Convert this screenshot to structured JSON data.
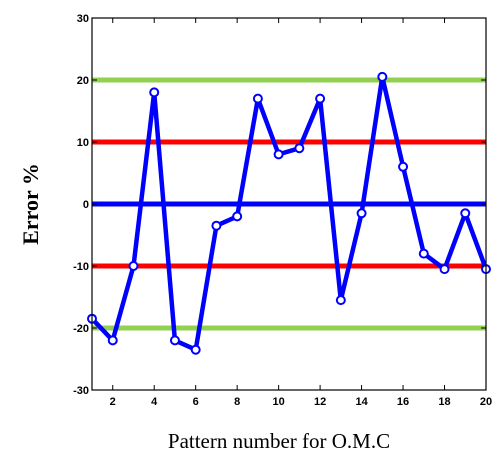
{
  "chart_data": {
    "type": "line",
    "title": "",
    "xlabel": "Pattern number for O.M.C",
    "ylabel": "Error %",
    "xlim": [
      1,
      20
    ],
    "ylim": [
      -30,
      30
    ],
    "xticks": [
      2,
      4,
      6,
      8,
      10,
      12,
      14,
      16,
      18,
      20
    ],
    "yticks": [
      -30,
      -20,
      -10,
      0,
      10,
      20,
      30
    ],
    "ytick_labels": [
      "-30",
      "-20",
      "-10",
      "0",
      "10",
      "20",
      "30"
    ],
    "grid": false,
    "reference_lines": [
      {
        "y": 20,
        "color": "#92d050"
      },
      {
        "y": 10,
        "color": "#ff0000"
      },
      {
        "y": 0,
        "color": "#0000ff"
      },
      {
        "y": -10,
        "color": "#ff0000"
      },
      {
        "y": -20,
        "color": "#92d050"
      }
    ],
    "series": [
      {
        "color": "#0000ff",
        "x": [
          1,
          2,
          3,
          4,
          5,
          6,
          7,
          8,
          9,
          10,
          11,
          12,
          13,
          14,
          15,
          16,
          17,
          18,
          19,
          20
        ],
        "values": [
          -18.5,
          -22,
          -10,
          18,
          -22,
          -23.5,
          -3.5,
          -2,
          17,
          8,
          9,
          17,
          -15.5,
          -1.5,
          20.5,
          6,
          -8,
          -10.5,
          -1.5,
          -10.5
        ]
      }
    ]
  }
}
